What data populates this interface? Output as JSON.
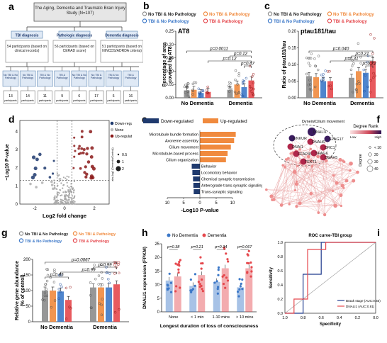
{
  "panels": {
    "a": {
      "label": "a",
      "root": "The Aging, Dementia and Traumatic Brain Injury Study (N=107)",
      "diagnoses": [
        {
          "title": "TBI diagnosis",
          "desc": "54 participants (based on clinical records)"
        },
        {
          "title": "Pathologic diagnosis",
          "desc": "56 participants (based on CERAD score)"
        },
        {
          "title": "Dementia diagnosis",
          "desc": "51 participants (based on NINCDS/ADRDA criteria)"
        }
      ],
      "leaves": [
        {
          "label": "No TBI & No Pathology",
          "n": "13",
          "unit": "participants"
        },
        {
          "label": "No TBI & Pathology",
          "n": "14",
          "unit": "participants"
        },
        {
          "label": "TBI & No Pathology",
          "n": "11",
          "unit": "participants"
        },
        {
          "label": "TBI & Pathology",
          "n": "9",
          "unit": "participants"
        },
        {
          "label": "No TBI & No Pathology",
          "n": "6",
          "unit": "participants"
        },
        {
          "label": "No TBI & Pathology",
          "n": "17",
          "unit": "participants"
        },
        {
          "label": "TBI & No Pathology",
          "n": "6",
          "unit": "participants"
        },
        {
          "label": "TBI & Pathology",
          "n": "16",
          "unit": "participants"
        }
      ]
    },
    "b": {
      "label": "b",
      "title": "AT8",
      "legend": [
        "No TBI & No Pathology",
        "No TBI & Pathology",
        "TBI & No Pathology",
        "TBI & Pathology"
      ],
      "pvalues": [
        "p=0.0011",
        "p=0.12",
        "p=0.12",
        "p=0.67"
      ],
      "ylabel": "Percentage of area covered by AT8",
      "yticks": [
        "0.00",
        "0.05",
        "0.10",
        "0.15",
        "0.20",
        "0.25"
      ],
      "groups": [
        "No Dementia",
        "Dementia"
      ]
    },
    "c": {
      "label": "c",
      "title": "ptau181/tau",
      "legend": [
        "No TBI & No Pathology",
        "No TBI & Pathology",
        "TBI & No Pathology",
        "TBI & Pathology"
      ],
      "pvalues": [
        "p=0.040",
        "p=0.21",
        "p=0.31",
        "p=0.72"
      ],
      "ylabel": "Ratio of ptau181/tau",
      "yticks": [
        "0.00",
        "0.05",
        "0.10",
        "0.15",
        "0.20"
      ],
      "groups": [
        "No Dementia",
        "Dementia"
      ]
    },
    "d": {
      "label": "d",
      "legend": [
        "Down-regulated",
        "None",
        "Up-regulated"
      ],
      "size_title": "abs (log2 (Dementia/Control))",
      "size_values": [
        "0.5",
        "1",
        "2"
      ],
      "ylabel": "−Log10 P-value",
      "xlabel": "Log2 fold change",
      "xticks": [
        "-2",
        "0",
        "2"
      ],
      "yticks": [
        "0",
        "1",
        "2",
        "3",
        "4"
      ]
    },
    "e": {
      "label": "e",
      "legend": [
        "Down-regulated",
        "Up-regulated"
      ],
      "terms_up": [
        "Microtubule bundle formation",
        "Axoneme assembly",
        "Cilium movement",
        "Microtubule-based process",
        "Cilium organization"
      ],
      "terms_down": [
        "Behavior",
        "Locomotory behavior",
        "Chemical synaptic transmission",
        "Anterograde trans-synaptic signaling",
        "Trans-synaptic signaling"
      ],
      "xticks": [
        "10",
        "5",
        "0",
        "5",
        "10"
      ],
      "xlabel": "-Log10 P-value"
    },
    "f": {
      "label": "f",
      "module": "Dynein/Cilium movement",
      "genes": [
        "DNALI1",
        "SPAG17",
        "ENKUR",
        "DNAH6",
        "DNAI1",
        "DRC1",
        "CFAP45",
        "SPAG6",
        "TEKT1",
        "DNAH5"
      ],
      "degree_title": "Degree Rank",
      "degree_low": "Low",
      "degree_high": "High",
      "size_title": "Degree",
      "size_values": [
        "< 10",
        "20",
        "30",
        "40"
      ]
    },
    "g": {
      "label": "g",
      "legend": [
        "No TBI & No Pathology",
        "No TBI & Pathology",
        "TBI & No Pathology",
        "TBI & Pathology"
      ],
      "pvalues": [
        "p=0.0067",
        "p=0.99",
        "p=0.99",
        "p=0.85"
      ],
      "ylabel": "Relative gene abundance (% of control)",
      "yticks": [
        "0",
        "50",
        "100",
        "150",
        "200"
      ],
      "groups": [
        "No Dementia",
        "Dementia"
      ]
    },
    "h": {
      "label": "h",
      "legend": [
        "No Dementia",
        "Dementia"
      ],
      "pvalues": [
        "p=0.38",
        "p=0.21",
        "p=0.34",
        "p=0.067"
      ],
      "ylabel": "DNALI1 expression (FPKM)",
      "yticks": [
        "0",
        "5",
        "10",
        "15",
        "20",
        "25"
      ],
      "categories": [
        "None",
        "< 1 min",
        "1-10 mins",
        "> 10 mins"
      ],
      "xlabel": "Longest duration of loss of consciousness"
    },
    "i": {
      "label": "i",
      "title": "ROC curve-TBI group",
      "ylabel": "Sensitivity",
      "xlabel": "Specificity",
      "xticks": [
        "1.0",
        "0.8",
        "0.6",
        "0.4",
        "0.2",
        "0.0"
      ],
      "yticks": [
        "0.0",
        "0.2",
        "0.4",
        "0.6",
        "0.8",
        "1.0"
      ],
      "legend": [
        "Braak stage (AUC:0.65)",
        "DNALI1 (AUC:0.81)"
      ]
    }
  },
  "colors": {
    "grey": "#8c8c8c",
    "orange": "#f08a3e",
    "blue": "#3c78c8",
    "red": "#e5484d",
    "navy": "#1f3a6e",
    "brown": "#8b1a1a",
    "boxfill": "#dfe9f5",
    "boxedge": "#6a8fb8"
  },
  "chart_data": [
    {
      "panel": "b",
      "type": "bar",
      "title": "AT8",
      "categories": [
        "No Dementia",
        "Dementia"
      ],
      "series": [
        {
          "name": "No TBI & No Pathology",
          "values": [
            0.028,
            0.03
          ]
        },
        {
          "name": "No TBI & Pathology",
          "values": [
            0.03,
            0.05
          ]
        },
        {
          "name": "TBI & No Pathology",
          "values": [
            0.018,
            0.04
          ]
        },
        {
          "name": "TBI & Pathology",
          "values": [
            0.022,
            0.065
          ]
        }
      ],
      "ylabel": "Percentage of area covered by AT8",
      "ylim": [
        0,
        0.25
      ]
    },
    {
      "panel": "c",
      "type": "bar",
      "title": "ptau181/tau",
      "categories": [
        "No Dementia",
        "Dementia"
      ],
      "series": [
        {
          "name": "No TBI & No Pathology",
          "values": [
            0.065,
            0.06
          ]
        },
        {
          "name": "No TBI & Pathology",
          "values": [
            0.062,
            0.08
          ]
        },
        {
          "name": "TBI & No Pathology",
          "values": [
            0.05,
            0.075
          ]
        },
        {
          "name": "TBI & Pathology",
          "values": [
            0.05,
            0.11
          ]
        }
      ],
      "ylabel": "Ratio of ptau181/tau",
      "ylim": [
        0,
        0.2
      ]
    },
    {
      "panel": "e",
      "type": "bar",
      "categories": [
        "Microtubule bundle formation",
        "Axoneme assembly",
        "Cilium movement",
        "Microtubule-based process",
        "Cilium organization",
        "Behavior",
        "Locomotory behavior",
        "Chemical synaptic transmission",
        "Anterograde trans-synaptic signaling",
        "Trans-synaptic signaling"
      ],
      "series": [
        {
          "name": "Up-regulated",
          "values": [
            11,
            10.5,
            9.5,
            8.5,
            8,
            0,
            0,
            0,
            0,
            0
          ]
        },
        {
          "name": "Down-regulated",
          "values": [
            0,
            0,
            0,
            0,
            0,
            2.5,
            2.3,
            2.1,
            2.0,
            1.9
          ]
        }
      ],
      "xlabel": "-Log10 P-value",
      "xlim": [
        -12,
        12
      ]
    },
    {
      "panel": "g",
      "type": "bar",
      "categories": [
        "No Dementia",
        "Dementia"
      ],
      "series": [
        {
          "name": "No TBI & No Pathology",
          "values": [
            100,
            110
          ]
        },
        {
          "name": "No TBI & Pathology",
          "values": [
            100,
            110
          ]
        },
        {
          "name": "TBI & No Pathology",
          "values": [
            97,
            110
          ]
        },
        {
          "name": "TBI & Pathology",
          "values": [
            70,
            120
          ]
        }
      ],
      "ylabel": "Relative gene abundance (% of control)",
      "ylim": [
        0,
        200
      ]
    },
    {
      "panel": "h",
      "type": "bar",
      "categories": [
        "None",
        "< 1 min",
        "1-10 mins",
        "> 10 mins"
      ],
      "series": [
        {
          "name": "No Dementia",
          "values": [
            11.5,
            9.5,
            11,
            9
          ]
        },
        {
          "name": "Dementia",
          "values": [
            13,
            13.5,
            16,
            16
          ]
        }
      ],
      "xlabel": "Longest duration of loss of consciousness",
      "ylabel": "DNALI1 expression (FPKM)",
      "ylim": [
        0,
        25
      ]
    },
    {
      "panel": "i",
      "type": "line",
      "title": "ROC curve-TBI group",
      "series": [
        {
          "name": "Braak stage (AUC:0.65)",
          "x": [
            1.0,
            0.8,
            0.8,
            0.6,
            0.6,
            0.0
          ],
          "y": [
            0.0,
            0.0,
            0.55,
            0.55,
            1.0,
            1.0
          ]
        },
        {
          "name": "DNALI1 (AUC:0.81)",
          "x": [
            1.0,
            0.9,
            0.9,
            0.75,
            0.75,
            0.55,
            0.55,
            0.0
          ],
          "y": [
            0.0,
            0.0,
            0.2,
            0.2,
            0.9,
            0.9,
            1.0,
            1.0
          ]
        }
      ],
      "xlabel": "Specificity",
      "ylabel": "Sensitivity",
      "xlim": [
        1,
        0
      ],
      "ylim": [
        0,
        1
      ]
    }
  ]
}
